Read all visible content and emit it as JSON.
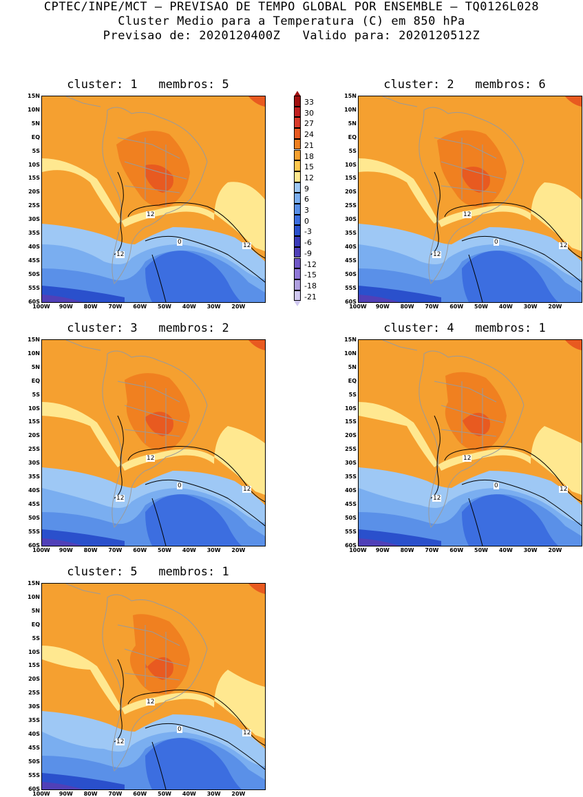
{
  "header": {
    "line1": "CPTEC/INPE/MCT – PREVISAO DE TEMPO GLOBAL POR ENSEMBLE – TQ0126L028",
    "line2": "Cluster Medio para a Temperatura (C) em 850 hPa",
    "line3": "Previsao de: 2020120400Z   Valido para: 2020120512Z"
  },
  "lat_labels": [
    "15N",
    "10N",
    "5N",
    "EQ",
    "5S",
    "10S",
    "15S",
    "20S",
    "25S",
    "30S",
    "35S",
    "40S",
    "45S",
    "50S",
    "55S",
    "60S"
  ],
  "lon_labels": [
    "100W",
    "90W",
    "80W",
    "70W",
    "60W",
    "50W",
    "40W",
    "30W",
    "20W"
  ],
  "colorbar": {
    "labels": [
      "33",
      "30",
      "27",
      "24",
      "21",
      "18",
      "15",
      "12",
      "9",
      "6",
      "3",
      "0",
      "-3",
      "-6",
      "-9",
      "-12",
      "-15",
      "-18",
      "-21"
    ],
    "colors": [
      "#a01010",
      "#c02020",
      "#d83a2a",
      "#e85a20",
      "#f08020",
      "#f5a030",
      "#ffc850",
      "#ffe890",
      "#9ec8f5",
      "#7aaef0",
      "#5a90e8",
      "#3c6ee0",
      "#2a50cc",
      "#3a3ab8",
      "#5040b8",
      "#7058c8",
      "#9078d8",
      "#b0a0e0",
      "#d0c8f0"
    ]
  },
  "contour_labels": {
    "twelve": "12",
    "zero": "0"
  },
  "panels": [
    {
      "title": "cluster: 1   membros: 5"
    },
    {
      "title": "cluster: 2   membros: 6"
    },
    {
      "title": "cluster: 3   membros: 2"
    },
    {
      "title": "cluster: 4   membros: 1"
    },
    {
      "title": "cluster: 5   membros: 1"
    }
  ]
}
